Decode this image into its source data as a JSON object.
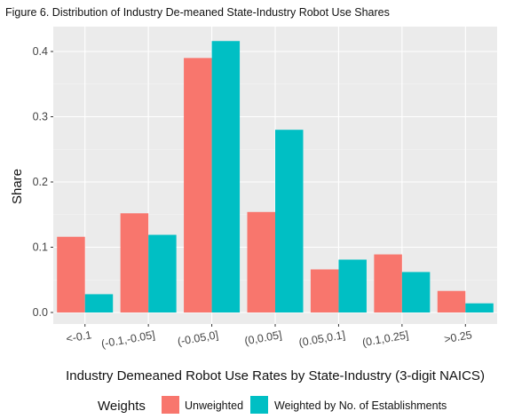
{
  "chart_data": {
    "type": "bar",
    "title": "Figure 6. Distribution of Industry De-meaned State-Industry Robot Use Shares",
    "xlabel": "Industry Demeaned Robot Use Rates by State-Industry (3-digit NAICS)",
    "ylabel": "Share",
    "categories": [
      "<-0.1",
      "(-0.1,-0.05]",
      "(-0.05,0]",
      "(0,0.05]",
      "(0.05,0.1]",
      "(0.1,0.25]",
      ">0.25"
    ],
    "ylim": [
      0,
      0.44
    ],
    "yticks": [
      "0.0",
      "0.1",
      "0.2",
      "0.3",
      "0.4"
    ],
    "grid": true,
    "legend_title": "Weights",
    "legend_position": "bottom",
    "series": [
      {
        "name": "Unweighted",
        "color": "#F8766D",
        "values": [
          0.116,
          0.152,
          0.39,
          0.154,
          0.066,
          0.089,
          0.033
        ]
      },
      {
        "name": "Weighted by No. of Establishments",
        "color": "#00BFC4",
        "values": [
          0.028,
          0.119,
          0.416,
          0.28,
          0.081,
          0.062,
          0.014
        ]
      }
    ]
  }
}
